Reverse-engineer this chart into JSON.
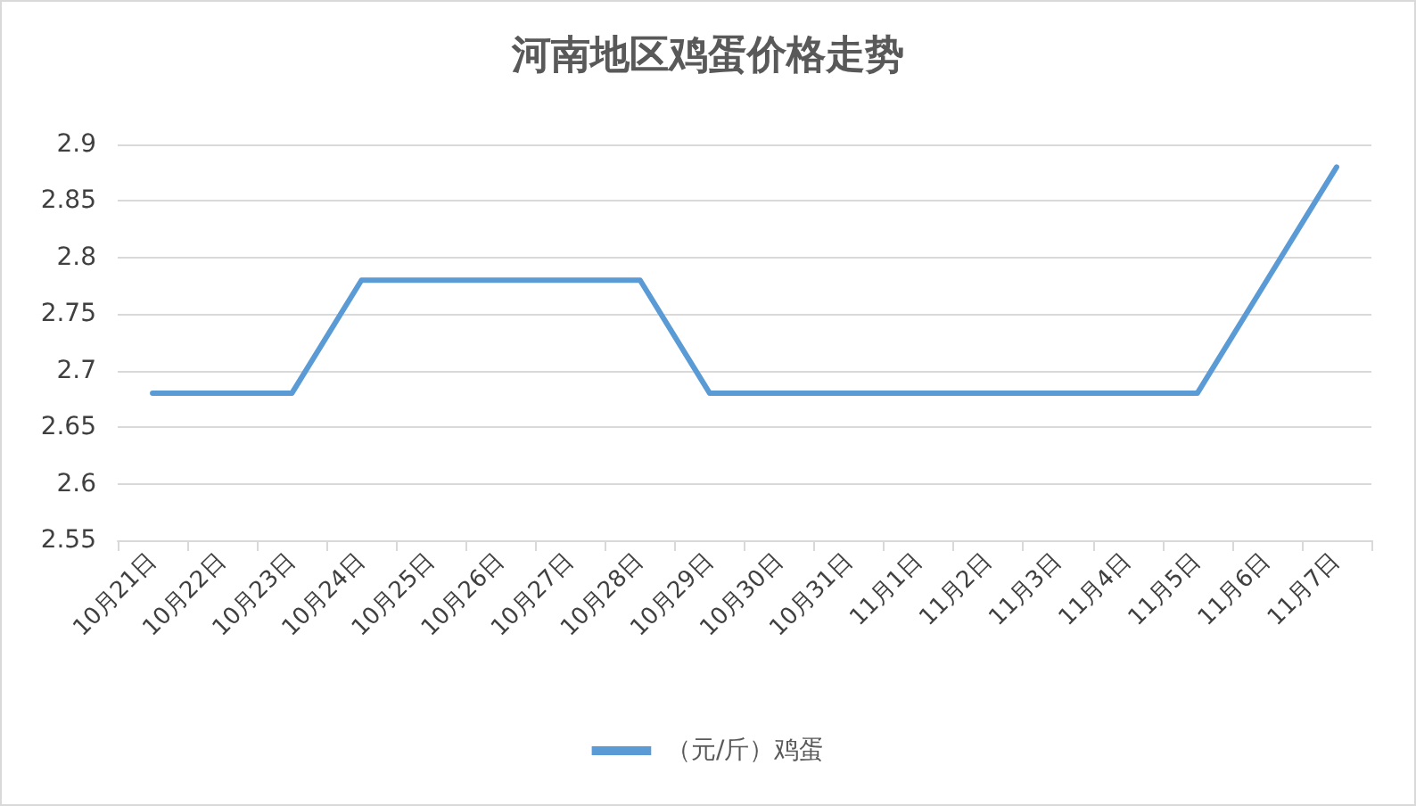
{
  "chart_data": {
    "type": "line",
    "title": "河南地区鸡蛋价格走势",
    "categories": [
      "10月21日",
      "10月22日",
      "10月23日",
      "10月24日",
      "10月25日",
      "10月26日",
      "10月27日",
      "10月28日",
      "10月29日",
      "10月30日",
      "10月31日",
      "11月1日",
      "11月2日",
      "11月3日",
      "11月4日",
      "11月5日",
      "11月6日",
      "11月7日"
    ],
    "series": [
      {
        "name": "（元/斤）鸡蛋",
        "color": "#5b9bd5",
        "values": [
          2.68,
          2.68,
          2.68,
          2.78,
          2.78,
          2.78,
          2.78,
          2.78,
          2.68,
          2.68,
          2.68,
          2.68,
          2.68,
          2.68,
          2.68,
          2.68,
          2.78,
          2.88
        ]
      }
    ],
    "ylim": [
      2.55,
      2.9
    ],
    "yticks": [
      2.55,
      2.6,
      2.65,
      2.7,
      2.75,
      2.8,
      2.85,
      2.9
    ],
    "grid": "y",
    "legend": "bottom",
    "marker": "none",
    "line_style": "solid"
  }
}
